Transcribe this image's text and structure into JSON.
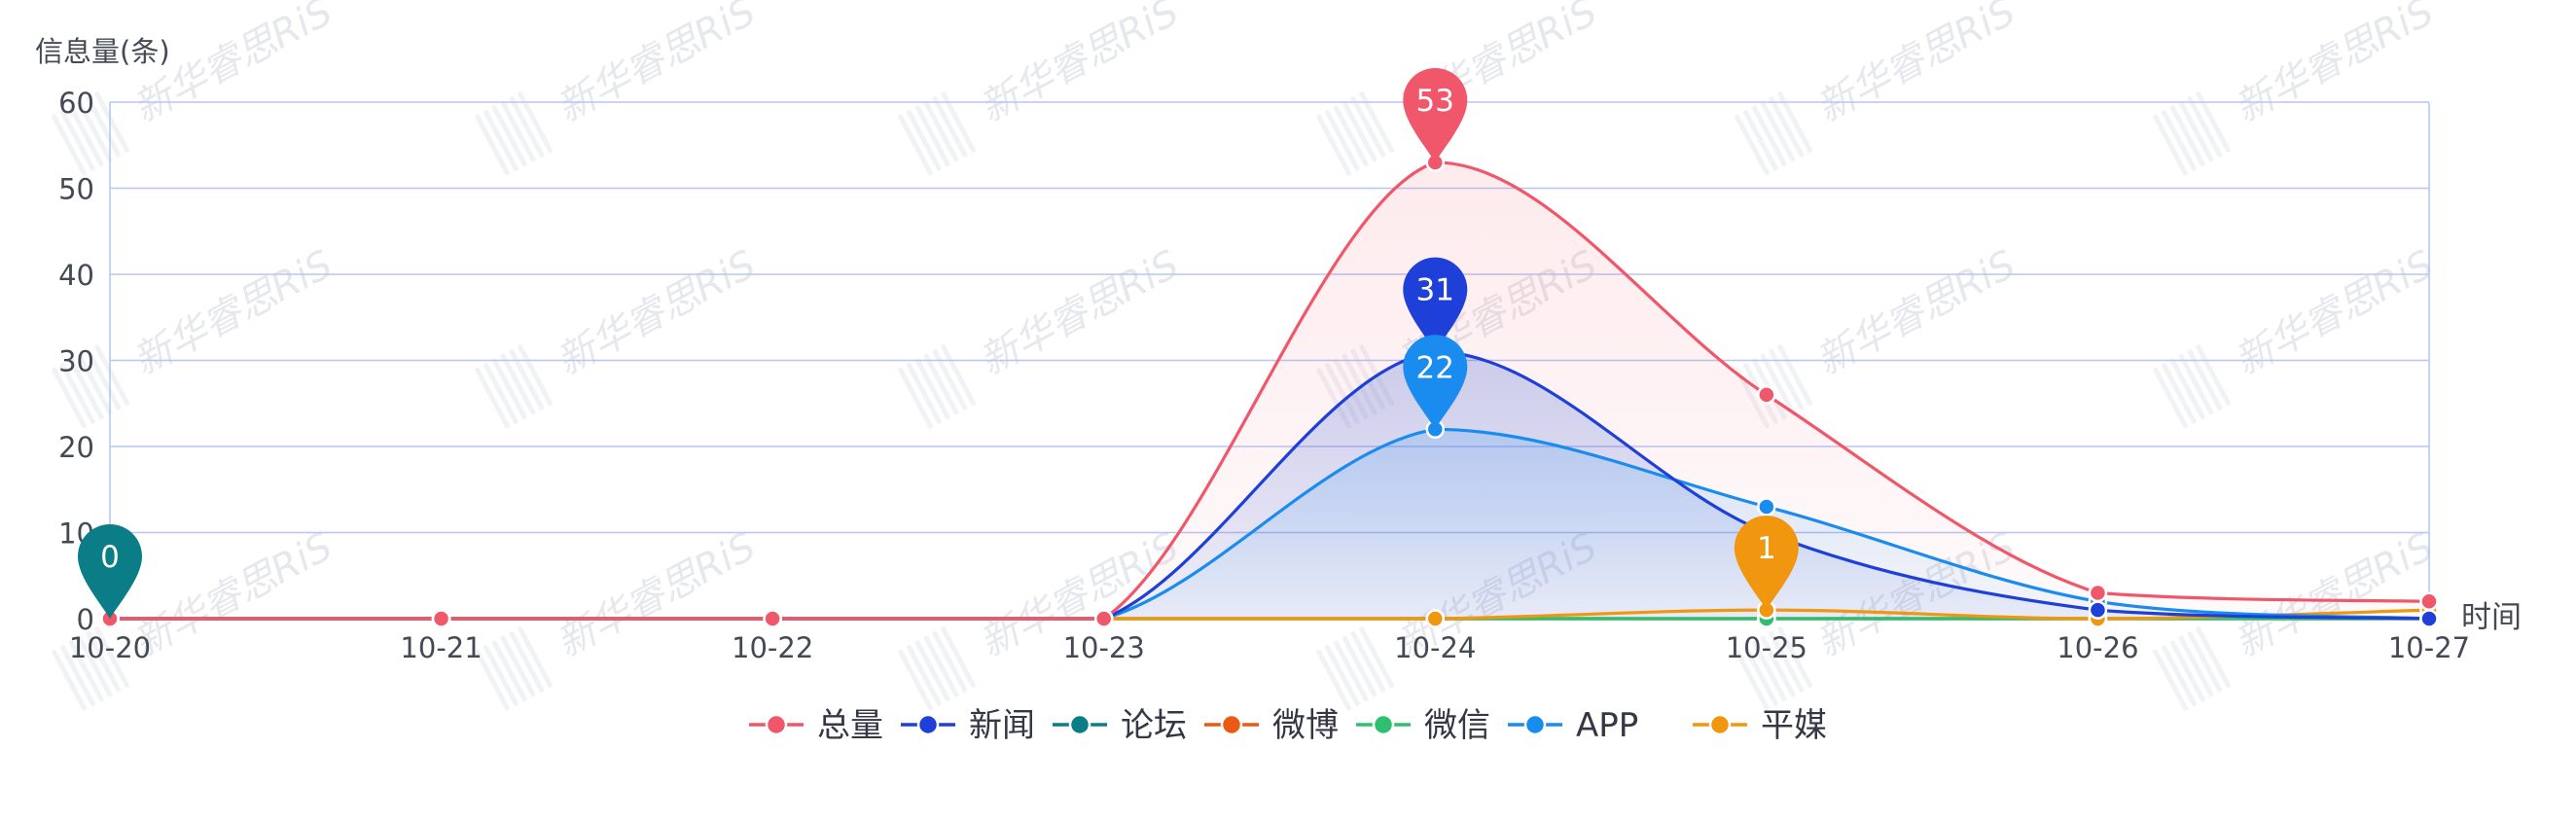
{
  "chart_data": {
    "type": "line",
    "smooth": true,
    "ylabel": "信息量(条)",
    "xlabel": "时间",
    "ylim": [
      0,
      60
    ],
    "yticks": [
      0,
      10,
      20,
      30,
      40,
      50,
      60
    ],
    "categories": [
      "10-20",
      "10-21",
      "10-22",
      "10-23",
      "10-24",
      "10-25",
      "10-26",
      "10-27"
    ],
    "grid": true,
    "legend_position": "bottom-center",
    "series": [
      {
        "name": "总量",
        "color": "#f0576a",
        "area": true,
        "values": [
          0,
          0,
          0,
          0,
          53,
          26,
          3,
          2
        ]
      },
      {
        "name": "新闻",
        "color": "#1e3fd8",
        "area": true,
        "values": [
          0,
          0,
          0,
          0,
          31,
          10,
          1,
          0
        ]
      },
      {
        "name": "论坛",
        "color": "#0b7d86",
        "area": false,
        "values": [
          0,
          0,
          0,
          0,
          0,
          0,
          0,
          0
        ]
      },
      {
        "name": "微博",
        "color": "#ea5a12",
        "area": false,
        "values": [
          0,
          0,
          0,
          0,
          0,
          0,
          0,
          0
        ]
      },
      {
        "name": "微信",
        "color": "#2fbf71",
        "area": false,
        "values": [
          0,
          0,
          0,
          0,
          0,
          0,
          0,
          0
        ]
      },
      {
        "name": "APP",
        "color": "#1a8cf0",
        "area": true,
        "values": [
          0,
          0,
          0,
          0,
          22,
          13,
          2,
          0
        ]
      },
      {
        "name": "平媒",
        "color": "#f0960f",
        "area": false,
        "values": [
          0,
          0,
          0,
          0,
          0,
          1,
          0,
          1
        ]
      }
    ],
    "annotations": [
      {
        "label": "53",
        "series": "总量",
        "category": "10-24",
        "value": 53,
        "color": "#f0576a"
      },
      {
        "label": "31",
        "series": "新闻",
        "category": "10-24",
        "value": 31,
        "color": "#1e3fd8"
      },
      {
        "label": "22",
        "series": "APP",
        "category": "10-24",
        "value": 22,
        "color": "#1a8cf0"
      },
      {
        "label": "0",
        "series": "论坛",
        "category": "10-20",
        "value": 0,
        "color": "#0b7d86"
      },
      {
        "label": "1",
        "series": "平媒",
        "category": "10-25",
        "value": 1,
        "color": "#f0960f"
      }
    ]
  },
  "watermark": {
    "text": "新华睿思RiS"
  }
}
